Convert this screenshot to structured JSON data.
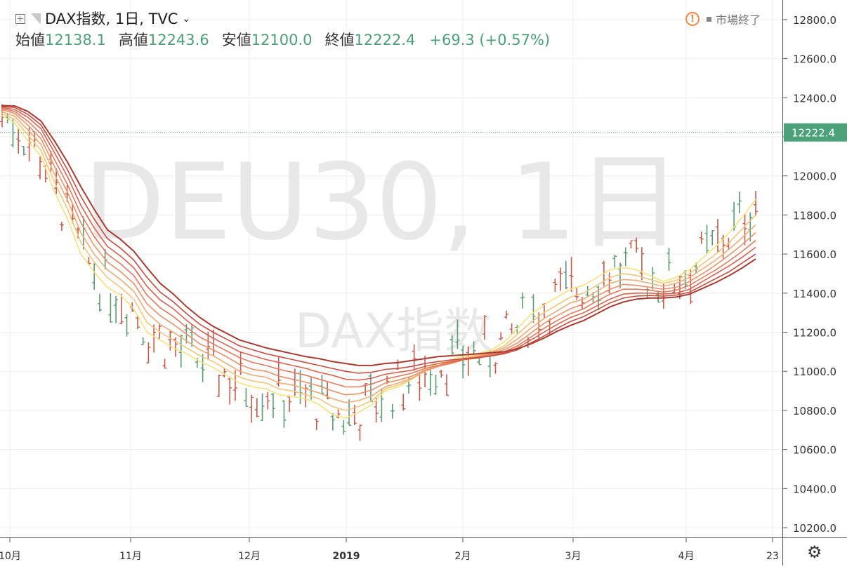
{
  "legend": {
    "symbol_label": "DAX指数, 1日, TVC",
    "open_label": "始値",
    "open_value": "12138.1",
    "high_label": "高値",
    "high_value": "12243.6",
    "low_label": "安値",
    "low_value": "12100.0",
    "close_label": "終値",
    "close_value": "12222.4",
    "change": "+69.3 (+0.57%)"
  },
  "status": {
    "market_status": "市場終了"
  },
  "watermark": {
    "main": "DEU30, 1日",
    "sub": "DAX指数"
  },
  "icons": {
    "settings": "gear-icon",
    "add": "plus-box-icon",
    "alert": "warning-icon",
    "flag": "flag-icon"
  },
  "colors": {
    "up": "#5a9b74",
    "down": "#c9594a",
    "ribbon": [
      "#f6e27a",
      "#f3c67a",
      "#efab73",
      "#ea9168",
      "#e47a5d",
      "#d86450",
      "#c54e3f",
      "#a83a2e"
    ],
    "last_price_badge": "#4ca07a"
  },
  "chart_data": {
    "type": "candlestick",
    "title": "DAX指数, 1日, TVC",
    "ylim": [
      10150,
      12900
    ],
    "y_ticks": [
      "12800.0",
      "12600.0",
      "12400.0",
      "12200.0",
      "12000.0",
      "11800.0",
      "11600.0",
      "11400.0",
      "11200.0",
      "11000.0",
      "10800.0",
      "10600.0",
      "10400.0",
      "10200.0"
    ],
    "x_ticks": [
      "10月",
      "11月",
      "12月",
      "2019",
      "2月",
      "3月",
      "4月",
      "23"
    ],
    "last_price": "12222.4",
    "series": [
      {
        "name": "",
        "values": [
          12310,
          12270,
          12180,
          12100,
          11920,
          11780,
          11600,
          11510,
          11430,
          11390,
          11320,
          11200,
          11160,
          11120,
          11090,
          11050,
          11020,
          10980,
          10940,
          10920,
          10910,
          10880,
          10870,
          10860,
          10830,
          10780,
          10760,
          10790,
          10830,
          10900,
          10920,
          10960,
          11010,
          11040,
          11060,
          11080,
          11090,
          11110,
          11150,
          11220,
          11290,
          11340,
          11380,
          11420,
          11440,
          11480,
          11520,
          11530,
          11520,
          11490,
          11460,
          11480,
          11520,
          11580,
          11640,
          11710,
          11790,
          11880
        ]
      },
      {
        "name": "",
        "values": [
          12320,
          12290,
          12210,
          12130,
          11970,
          11830,
          11660,
          11560,
          11480,
          11430,
          11370,
          11250,
          11200,
          11160,
          11120,
          11080,
          11050,
          11010,
          10970,
          10950,
          10940,
          10910,
          10900,
          10880,
          10860,
          10820,
          10800,
          10820,
          10850,
          10910,
          10930,
          10960,
          11000,
          11030,
          11050,
          11070,
          11085,
          11100,
          11130,
          11190,
          11250,
          11300,
          11340,
          11380,
          11400,
          11440,
          11480,
          11500,
          11490,
          11470,
          11450,
          11465,
          11500,
          11550,
          11600,
          11660,
          11730,
          11800
        ]
      },
      {
        "name": "",
        "values": [
          12330,
          12305,
          12235,
          12160,
          12010,
          11875,
          11710,
          11600,
          11520,
          11470,
          11410,
          11300,
          11240,
          11200,
          11155,
          11110,
          11080,
          11040,
          11000,
          10980,
          10970,
          10940,
          10930,
          10910,
          10890,
          10860,
          10840,
          10850,
          10875,
          10920,
          10940,
          10965,
          11000,
          11025,
          11045,
          11065,
          11080,
          11095,
          11120,
          11165,
          11220,
          11270,
          11310,
          11350,
          11370,
          11410,
          11450,
          11470,
          11465,
          11450,
          11435,
          11450,
          11480,
          11525,
          11570,
          11625,
          11685,
          11750
        ]
      },
      {
        "name": "",
        "values": [
          12340,
          12320,
          12260,
          12190,
          12050,
          11915,
          11760,
          11645,
          11560,
          11510,
          11450,
          11345,
          11285,
          11240,
          11190,
          11140,
          11110,
          11075,
          11035,
          11010,
          11000,
          10975,
          10960,
          10945,
          10925,
          10900,
          10880,
          10885,
          10905,
          10940,
          10955,
          10975,
          11005,
          11025,
          11040,
          11060,
          11075,
          11090,
          11110,
          11145,
          11195,
          11245,
          11285,
          11320,
          11345,
          11385,
          11420,
          11445,
          11440,
          11430,
          11420,
          11430,
          11460,
          11500,
          11545,
          11595,
          11650,
          11710
        ]
      },
      {
        "name": "",
        "values": [
          12345,
          12330,
          12280,
          12215,
          12085,
          11955,
          11805,
          11690,
          11600,
          11550,
          11490,
          11390,
          11325,
          11280,
          11225,
          11175,
          11140,
          11105,
          11070,
          11045,
          11030,
          11010,
          10995,
          10980,
          10960,
          10940,
          10920,
          10920,
          10935,
          10960,
          10975,
          10990,
          11015,
          11030,
          11045,
          11060,
          11070,
          11085,
          11100,
          11130,
          11175,
          11220,
          11260,
          11295,
          11320,
          11360,
          11395,
          11420,
          11420,
          11415,
          11405,
          11415,
          11440,
          11480,
          11520,
          11565,
          11615,
          11670
        ]
      },
      {
        "name": "",
        "values": [
          12350,
          12340,
          12300,
          12240,
          12120,
          11995,
          11850,
          11735,
          11640,
          11590,
          11530,
          11435,
          11365,
          11320,
          11260,
          11210,
          11170,
          11135,
          11100,
          11080,
          11060,
          11045,
          11030,
          11015,
          10995,
          10980,
          10960,
          10955,
          10965,
          10985,
          10995,
          11005,
          11025,
          11040,
          11050,
          11060,
          11068,
          11080,
          11095,
          11120,
          11160,
          11200,
          11240,
          11275,
          11300,
          11335,
          11370,
          11395,
          11400,
          11400,
          11395,
          11400,
          11420,
          11460,
          11500,
          11540,
          11585,
          11635
        ]
      },
      {
        "name": "",
        "values": [
          12355,
          12350,
          12315,
          12260,
          12150,
          12030,
          11895,
          11780,
          11680,
          11630,
          11570,
          11480,
          11405,
          11355,
          11295,
          11240,
          11200,
          11165,
          11130,
          11110,
          11090,
          11075,
          11060,
          11045,
          11030,
          11015,
          11000,
          10990,
          10995,
          11010,
          11015,
          11025,
          11040,
          11050,
          11058,
          11065,
          11070,
          11078,
          11090,
          11110,
          11145,
          11180,
          11220,
          11255,
          11280,
          11315,
          11350,
          11375,
          11385,
          11388,
          11385,
          11390,
          11405,
          11440,
          11475,
          11510,
          11555,
          11600
        ]
      },
      {
        "name": "",
        "values": [
          12360,
          12358,
          12330,
          12280,
          12180,
          12070,
          11945,
          11830,
          11725,
          11675,
          11615,
          11530,
          11450,
          11395,
          11330,
          11275,
          11230,
          11195,
          11160,
          11140,
          11120,
          11105,
          11090,
          11075,
          11065,
          11050,
          11040,
          11030,
          11030,
          11040,
          11045,
          11055,
          11065,
          11075,
          11080,
          11085,
          11090,
          11095,
          11100,
          11115,
          11140,
          11170,
          11205,
          11235,
          11260,
          11295,
          11330,
          11355,
          11370,
          11375,
          11375,
          11380,
          11395,
          11425,
          11455,
          11490,
          11530,
          11575
        ]
      }
    ]
  }
}
